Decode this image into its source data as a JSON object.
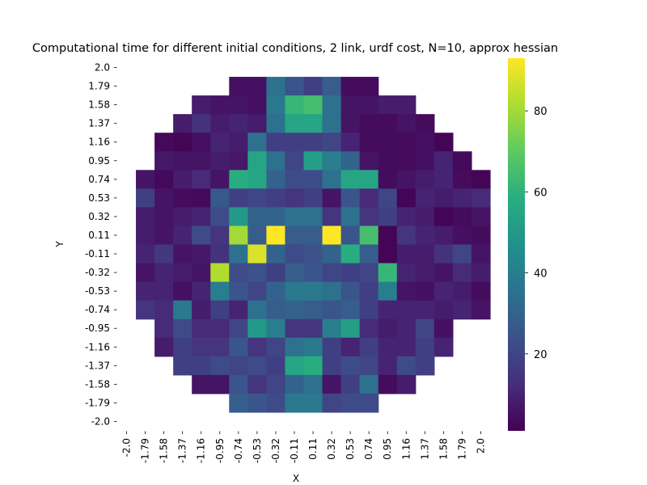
{
  "chart_data": {
    "type": "heatmap",
    "title": "Computational time for different initial conditions, 2 link, urdf cost, N=10, approx hessian",
    "xlabel": "X",
    "ylabel": "Y",
    "x_ticks": [
      "-2.0",
      "-1.79",
      "-1.58",
      "-1.37",
      "-1.16",
      "-0.95",
      "-0.74",
      "-0.53",
      "-0.32",
      "-0.11",
      "0.11",
      "0.32",
      "0.53",
      "0.74",
      "0.95",
      "1.16",
      "1.37",
      "1.58",
      "1.79",
      "2.0"
    ],
    "y_ticks": [
      "2.0",
      "1.79",
      "1.58",
      "1.37",
      "1.16",
      "0.95",
      "0.74",
      "0.53",
      "0.32",
      "0.11",
      "-0.11",
      "-0.32",
      "-0.53",
      "-0.74",
      "-0.95",
      "-1.16",
      "-1.37",
      "-1.58",
      "-1.79",
      "-2.0"
    ],
    "colormap": "viridis",
    "colorbar_range": [
      1,
      93
    ],
    "colorbar_ticks": [
      20,
      40,
      60,
      80
    ],
    "grid": false,
    "values": [
      [
        null,
        null,
        null,
        null,
        null,
        null,
        null,
        null,
        null,
        null,
        null,
        null,
        null,
        null,
        null,
        null,
        null,
        null,
        null,
        null
      ],
      [
        null,
        null,
        null,
        null,
        null,
        null,
        5,
        5,
        35,
        25,
        18,
        28,
        4,
        4,
        null,
        null,
        null,
        null,
        null,
        null
      ],
      [
        null,
        null,
        null,
        null,
        8,
        6,
        6,
        5,
        38,
        62,
        65,
        35,
        6,
        6,
        8,
        8,
        null,
        null,
        null,
        null
      ],
      [
        null,
        null,
        null,
        8,
        14,
        8,
        10,
        8,
        35,
        55,
        55,
        35,
        6,
        4,
        4,
        6,
        4,
        null,
        null,
        null
      ],
      [
        null,
        null,
        3,
        2,
        5,
        10,
        8,
        35,
        18,
        18,
        18,
        20,
        10,
        4,
        4,
        4,
        5,
        2,
        null,
        null
      ],
      [
        null,
        null,
        7,
        6,
        6,
        8,
        7,
        55,
        35,
        20,
        52,
        40,
        30,
        6,
        4,
        4,
        5,
        10,
        3,
        null
      ],
      [
        null,
        6,
        3,
        8,
        12,
        6,
        58,
        55,
        30,
        22,
        22,
        35,
        55,
        55,
        4,
        6,
        8,
        10,
        4,
        2
      ],
      [
        null,
        18,
        6,
        4,
        3,
        26,
        18,
        20,
        18,
        15,
        18,
        6,
        25,
        12,
        20,
        2,
        10,
        8,
        10,
        12
      ],
      [
        null,
        8,
        6,
        8,
        10,
        22,
        50,
        30,
        30,
        35,
        35,
        15,
        35,
        15,
        18,
        10,
        8,
        2,
        4,
        6
      ],
      [
        null,
        8,
        6,
        10,
        22,
        15,
        80,
        28,
        93,
        28,
        28,
        93,
        25,
        65,
        2,
        15,
        10,
        8,
        5,
        4
      ],
      [
        null,
        10,
        16,
        6,
        7,
        14,
        35,
        88,
        30,
        22,
        24,
        30,
        58,
        28,
        2,
        8,
        8,
        14,
        20,
        6
      ],
      [
        null,
        6,
        10,
        8,
        6,
        82,
        22,
        24,
        18,
        28,
        25,
        20,
        18,
        20,
        62,
        10,
        8,
        6,
        12,
        8
      ],
      [
        null,
        10,
        10,
        5,
        10,
        40,
        25,
        20,
        30,
        38,
        38,
        35,
        25,
        18,
        40,
        6,
        5,
        10,
        8,
        4
      ],
      [
        null,
        15,
        12,
        38,
        8,
        18,
        10,
        35,
        28,
        30,
        28,
        25,
        28,
        18,
        10,
        10,
        10,
        8,
        10,
        6
      ],
      [
        null,
        null,
        12,
        22,
        12,
        12,
        20,
        50,
        40,
        15,
        15,
        40,
        52,
        12,
        8,
        10,
        20,
        5,
        null,
        null
      ],
      [
        null,
        null,
        8,
        18,
        15,
        15,
        25,
        15,
        20,
        35,
        38,
        18,
        10,
        18,
        10,
        10,
        18,
        10,
        null,
        null
      ],
      [
        null,
        null,
        null,
        18,
        18,
        22,
        20,
        22,
        18,
        55,
        58,
        18,
        22,
        20,
        10,
        22,
        18,
        null,
        null,
        null
      ],
      [
        null,
        null,
        null,
        null,
        6,
        6,
        25,
        15,
        20,
        30,
        35,
        6,
        18,
        35,
        4,
        8,
        null,
        null,
        null,
        null
      ],
      [
        null,
        null,
        null,
        null,
        null,
        null,
        28,
        25,
        22,
        38,
        38,
        20,
        22,
        22,
        null,
        null,
        null,
        null,
        null,
        null
      ],
      [
        null,
        null,
        null,
        null,
        null,
        null,
        null,
        null,
        null,
        null,
        null,
        null,
        null,
        null,
        null,
        null,
        null,
        null,
        null,
        null
      ]
    ]
  }
}
